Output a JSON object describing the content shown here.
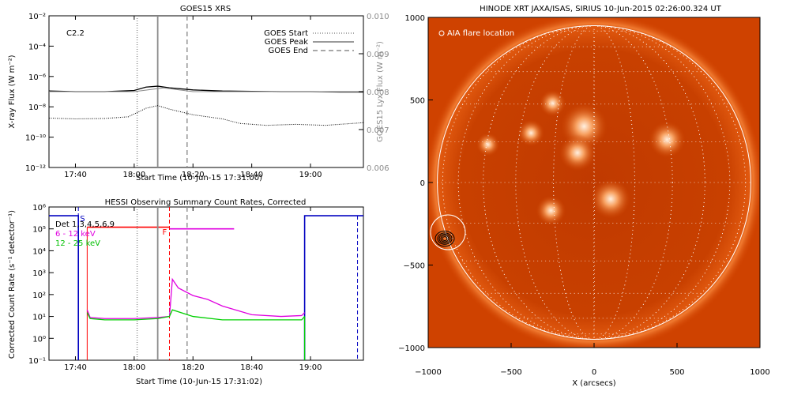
{
  "colors": {
    "goes_long": "#000000",
    "goes_short": "#000000",
    "lya": "#8c8c8c",
    "hessi_low": "#e000e0",
    "hessi_mid": "#00d000",
    "attenuator": "#ff0000",
    "saa_night": "#0000c0",
    "sun_background": "#d24400",
    "grid_line": "#ffffff"
  },
  "chart_data": [
    {
      "type": "line",
      "title": "GOES15 XRS",
      "xlabel": "Start Time (10-Jun-15 17:31:00)",
      "ylabel": "X-ray Flux (W m⁻²)",
      "ylabel_right": "GOES15 Lyx Flux (W m⁻²)",
      "annotation": "C2.2",
      "x_ticks": [
        "17:40",
        "18:00",
        "18:20",
        "18:40",
        "19:00"
      ],
      "xlim": [
        "17:31",
        "19:18"
      ],
      "y_log": true,
      "ylim": [
        1e-12,
        0.01
      ],
      "y_ticks": [
        "10⁻¹²",
        "10⁻¹⁰",
        "10⁻⁸",
        "10⁻⁶",
        "10⁻⁴",
        "10⁻²"
      ],
      "y_ticks_right": [
        "0.006",
        "0.007",
        "0.008",
        "0.009",
        "0.010"
      ],
      "ylim_right": [
        0.006,
        0.01
      ],
      "legend": [
        "GOES Start",
        "GOES Peak",
        "GOES End"
      ],
      "legend_placement": "top-right",
      "event_lines": {
        "start": "18:01",
        "peak": "18:08",
        "end": "18:18"
      },
      "series": [
        {
          "x": [
            "17:31",
            "17:40",
            "17:50",
            "18:00",
            "18:04",
            "18:08",
            "18:12",
            "18:20",
            "18:30",
            "18:40",
            "18:50",
            "19:00",
            "19:10",
            "19:18"
          ],
          "values": [
            1.1e-07,
            1e-07,
            1e-07,
            1.2e-07,
            2e-07,
            2.3e-07,
            1.8e-07,
            1.3e-07,
            1.1e-07,
            1.05e-07,
            1e-07,
            1e-07,
            9.5e-08,
            9.5e-08
          ]
        },
        {
          "x": [
            "17:31",
            "17:40",
            "17:50",
            "17:58",
            "18:04",
            "18:08",
            "18:12",
            "18:20",
            "18:30",
            "18:36",
            "18:45",
            "18:55",
            "19:05",
            "19:18"
          ],
          "values": [
            1.8e-09,
            1.6e-09,
            1.7e-09,
            2.2e-09,
            8e-09,
            1.2e-08,
            7e-09,
            3e-09,
            1.6e-09,
            8e-10,
            6e-10,
            7e-10,
            6e-10,
            9e-10
          ]
        },
        {
          "x": [
            "17:31",
            "18:00",
            "18:10",
            "18:20",
            "19:18"
          ],
          "values_right": [
            0.008,
            0.008,
            0.0081,
            0.008,
            0.008
          ]
        }
      ]
    },
    {
      "type": "line",
      "title": "HESSI Observing Summary Count Rates, Corrected",
      "xlabel": "Start Time (10-Jun-15 17:31:02)",
      "ylabel": "Corrected Count Rate (s⁻¹ detector⁻¹)",
      "x_ticks": [
        "17:40",
        "18:00",
        "18:20",
        "18:40",
        "19:00"
      ],
      "xlim": [
        "17:31",
        "19:18"
      ],
      "y_log": true,
      "ylim": [
        0.1,
        1000000.0
      ],
      "y_ticks": [
        "10⁻¹",
        "10⁰",
        "10¹",
        "10²",
        "10³",
        "10⁴",
        "10⁵",
        "10⁶"
      ],
      "legend": [
        "Det 1,3,4,5,6,9",
        "6 - 12 keV",
        "12 - 25 keV"
      ],
      "legend_placement": "top-left",
      "markers": {
        "S": "17:41",
        "F": "18:12"
      },
      "event_lines": {
        "start": "18:01",
        "peak": "18:08",
        "end": "18:18"
      },
      "series": [
        {
          "name": "6 - 12 keV",
          "x": [
            "17:44",
            "17:45",
            "17:50",
            "18:00",
            "18:08",
            "18:12",
            "18:13",
            "18:15",
            "18:20",
            "18:25",
            "18:30",
            "18:40",
            "18:50",
            "18:57",
            "18:58"
          ],
          "values": [
            20,
            9,
            8,
            8,
            9,
            10,
            500,
            200,
            90,
            60,
            30,
            12,
            10,
            11,
            15
          ]
        },
        {
          "name": "12 - 25 keV",
          "x": [
            "17:44",
            "17:45",
            "17:50",
            "18:00",
            "18:08",
            "18:12",
            "18:13",
            "18:20",
            "18:30",
            "18:40",
            "18:50",
            "18:57",
            "18:58"
          ],
          "values": [
            15,
            8,
            7,
            7,
            8,
            10,
            20,
            10,
            7,
            7,
            7,
            7,
            10
          ]
        }
      ]
    },
    {
      "type": "heatmap",
      "title": "HINODE XRT JAXA/ISAS, SIRIUS 10-Jun-2015 02:26:00.324 UT",
      "xlabel": "X (arcsecs)",
      "ylabel": "",
      "x_ticks": [
        "−1000",
        "−500",
        "0",
        "500",
        "1000"
      ],
      "y_ticks": [
        "−1000",
        "−500",
        "0",
        "500",
        "1000"
      ],
      "xlim": [
        -1000,
        1000
      ],
      "ylim": [
        -1000,
        1000
      ],
      "annotation": "AIA flare location",
      "flare_location": {
        "x": -900,
        "y": -340
      },
      "sun_radius": 945,
      "bright_regions": [
        {
          "x": -250,
          "y": 480,
          "r": 80
        },
        {
          "x": -60,
          "y": 340,
          "r": 140
        },
        {
          "x": 440,
          "y": 260,
          "r": 110
        },
        {
          "x": -260,
          "y": -170,
          "r": 90
        },
        {
          "x": -100,
          "y": 180,
          "r": 110
        },
        {
          "x": -380,
          "y": 300,
          "r": 80
        },
        {
          "x": -640,
          "y": 230,
          "r": 70
        },
        {
          "x": 100,
          "y": -100,
          "r": 120
        }
      ]
    }
  ]
}
